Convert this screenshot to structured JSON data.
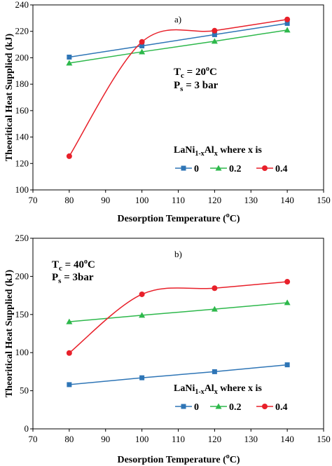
{
  "chart_data": [
    {
      "type": "line",
      "panel_label": "a)",
      "xlabel": "Desorption Temperature (",
      "xlabel_sup": "o",
      "xlabel_tail": "C)",
      "ylabel": "Theoritical Heat Supplied (kJ)",
      "xlim": [
        70,
        150
      ],
      "ylim": [
        100,
        240
      ],
      "xticks": [
        70,
        80,
        90,
        100,
        110,
        120,
        130,
        140,
        150
      ],
      "yticks": [
        100,
        120,
        140,
        160,
        180,
        200,
        220,
        240
      ],
      "annotation_lines": [
        {
          "main": "T",
          "sub": "c",
          "rest": " = 20",
          "sup": "o",
          "tail": "C"
        },
        {
          "main": "P",
          "sub": "s",
          "rest": " = 3 bar",
          "sup": "",
          "tail": ""
        }
      ],
      "legend_title": {
        "a": "LaNi",
        "b": "1-x",
        "c": "Al",
        "d": "x",
        "e": " where x is"
      },
      "series": [
        {
          "name": "0",
          "color": "#2e75b6",
          "marker": "square",
          "smooth": false,
          "x": [
            80,
            100,
            120,
            140
          ],
          "y": [
            200.5,
            209,
            217.5,
            226
          ]
        },
        {
          "name": "0.2",
          "color": "#2db84b",
          "marker": "triangle",
          "smooth": false,
          "x": [
            80,
            100,
            120,
            140
          ],
          "y": [
            196,
            204.5,
            212.5,
            221
          ]
        },
        {
          "name": "0.4",
          "color": "#e8202a",
          "marker": "circle",
          "smooth": true,
          "x": [
            80,
            100,
            120,
            140
          ],
          "y": [
            125.5,
            212,
            220.5,
            229
          ]
        }
      ]
    },
    {
      "type": "line",
      "panel_label": "b)",
      "xlabel": "Desorption Temperature (",
      "xlabel_sup": "o",
      "xlabel_tail": "C)",
      "ylabel": "Theoritical Heat Supplied (kJ)",
      "xlim": [
        70,
        150
      ],
      "ylim": [
        0,
        250
      ],
      "xticks": [
        70,
        80,
        90,
        100,
        110,
        120,
        130,
        140,
        150
      ],
      "yticks": [
        0,
        50,
        100,
        150,
        200,
        250
      ],
      "annotation_lines": [
        {
          "main": "T",
          "sub": "c",
          "rest": " = 40",
          "sup": "o",
          "tail": "C"
        },
        {
          "main": "P",
          "sub": "s",
          "rest": " = 3bar",
          "sup": "",
          "tail": ""
        }
      ],
      "legend_title": {
        "a": "LaNi",
        "b": "1-x",
        "c": "Al",
        "d": "x",
        "e": " where x is"
      },
      "series": [
        {
          "name": "0",
          "color": "#2e75b6",
          "marker": "square",
          "smooth": false,
          "x": [
            80,
            100,
            120,
            140
          ],
          "y": [
            58,
            67,
            75,
            84
          ]
        },
        {
          "name": "0.2",
          "color": "#2db84b",
          "marker": "triangle",
          "smooth": false,
          "x": [
            80,
            100,
            120,
            140
          ],
          "y": [
            140.5,
            149,
            157,
            165.5
          ]
        },
        {
          "name": "0.4",
          "color": "#e8202a",
          "marker": "circle",
          "smooth": true,
          "x": [
            80,
            100,
            120,
            140
          ],
          "y": [
            99.5,
            176.5,
            184.5,
            193
          ]
        }
      ]
    }
  ]
}
